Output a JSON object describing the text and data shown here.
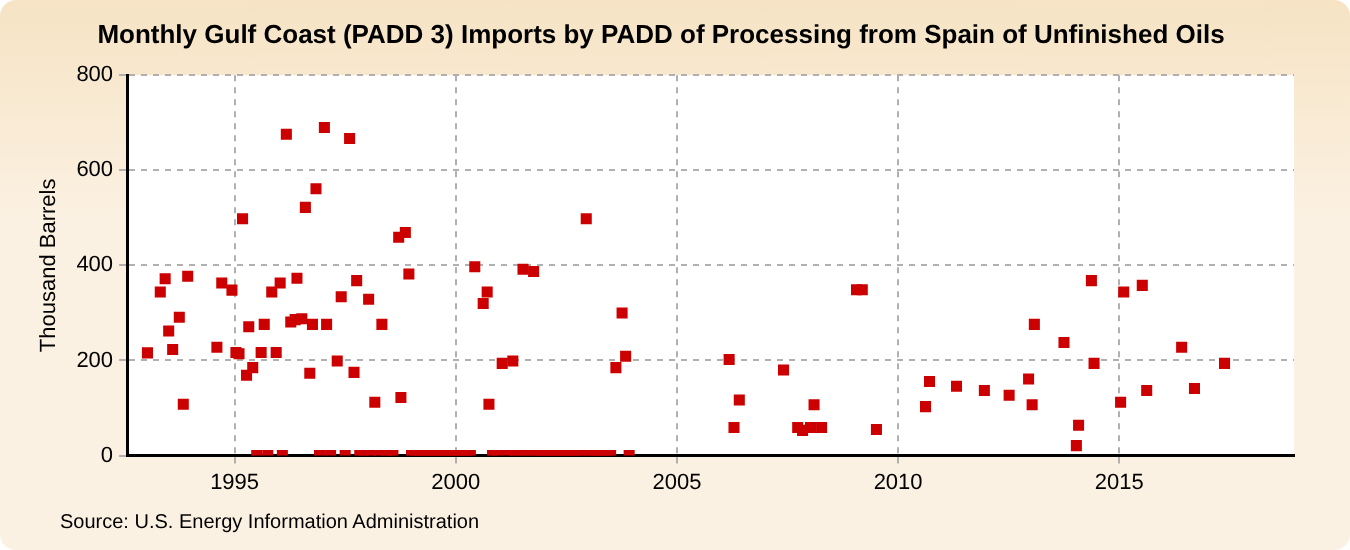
{
  "chart_data": {
    "type": "scatter",
    "title": "Monthly Gulf Coast (PADD 3) Imports by PADD of Processing from Spain of Unfinished Oils",
    "ylabel": "Thousand Barrels",
    "annotations": [
      "Source: U.S. Energy Information Administration"
    ],
    "xlim": [
      1992.57,
      2018.95
    ],
    "xticks": [
      1995,
      2000,
      2005,
      2010,
      2015
    ],
    "ylim": [
      0,
      800
    ],
    "yticks": [
      0,
      200,
      400,
      600,
      800
    ],
    "grid": true,
    "marker": "square",
    "series": [
      {
        "color": "#cc0000",
        "x": [
          1993.03,
          1993.32,
          1993.43,
          1993.51,
          1993.6,
          1993.75,
          1993.84,
          1993.94,
          1994.6,
          1994.71,
          1994.94,
          1995.03,
          1995.1,
          1995.18,
          1995.27,
          1995.32,
          1995.41,
          1995.6,
          1995.67,
          1995.84,
          1995.94,
          1996.03,
          1996.17,
          1996.27,
          1996.37,
          1996.41,
          1996.52,
          1996.6,
          1996.7,
          1996.76,
          1996.84,
          1997.03,
          1997.08,
          1997.32,
          1997.41,
          1997.6,
          1997.7,
          1997.76,
          1998.03,
          1998.17,
          1998.33,
          1998.71,
          1998.76,
          1998.86,
          1998.94,
          2000.43,
          2000.62,
          2000.71,
          2000.75,
          2001.05,
          2001.29,
          2001.52,
          2001.76,
          2002.95,
          2003.62,
          2003.76,
          2003.84,
          2006.18,
          2006.29,
          2006.41,
          2007.41,
          2007.73,
          2007.84,
          2008.02,
          2008.1,
          2008.27,
          2009.06,
          2009.19,
          2009.51,
          2010.62,
          2010.71,
          2011.32,
          2011.95,
          2012.51,
          2012.95,
          2013.03,
          2013.08,
          2013.75,
          2014.03,
          2014.08,
          2014.37,
          2014.43,
          2015.03,
          2015.1,
          2015.52,
          2015.62,
          2016.41,
          2016.7,
          2017.38,
          1995.5,
          1995.75,
          1996.08,
          1996.92,
          1997.17,
          1997.5,
          1997.83,
          1997.92,
          1998.08,
          1998.25,
          1998.42,
          1998.5,
          1998.58,
          1999.0,
          1999.08,
          1999.17,
          1999.25,
          1999.33,
          1999.42,
          1999.5,
          1999.58,
          1999.67,
          1999.75,
          1999.83,
          1999.92,
          2000.0,
          2000.08,
          2000.17,
          2000.25,
          2000.33,
          2000.83,
          2000.92,
          2001.17,
          2001.33,
          2001.42,
          2001.58,
          2001.67,
          2001.83,
          2001.92,
          2002.0,
          2002.08,
          2002.17,
          2002.25,
          2002.33,
          2002.42,
          2002.5,
          2002.58,
          2002.67,
          2002.75,
          2002.83,
          2003.0,
          2003.08,
          2003.17,
          2003.25,
          2003.33,
          2003.42,
          2003.5,
          2003.92
        ],
        "values": [
          216,
          344,
          372,
          262,
          223,
          291,
          108,
          377,
          228,
          363,
          348,
          217,
          214,
          498,
          169,
          271,
          185,
          217,
          276,
          344,
          217,
          363,
          676,
          281,
          286,
          373,
          288,
          522,
          173,
          276,
          561,
          690,
          276,
          199,
          334,
          667,
          175,
          368,
          329,
          112,
          276,
          459,
          122,
          469,
          382,
          397,
          320,
          344,
          108,
          194,
          199,
          392,
          387,
          498,
          185,
          300,
          209,
          202,
          59,
          117,
          180,
          59,
          53,
          59,
          107,
          59,
          349,
          349,
          55,
          103,
          156,
          146,
          137,
          127,
          161,
          107,
          276,
          238,
          21,
          64,
          368,
          194,
          112,
          344,
          358,
          137,
          228,
          141,
          194,
          0,
          0,
          0,
          0,
          0,
          0,
          0,
          0,
          0,
          0,
          0,
          0,
          0,
          0,
          0,
          0,
          0,
          0,
          0,
          0,
          0,
          0,
          0,
          0,
          0,
          0,
          0,
          0,
          0,
          0,
          0,
          0,
          0,
          0,
          0,
          0,
          0,
          0,
          0,
          0,
          0,
          0,
          0,
          0,
          0,
          0,
          0,
          0,
          0,
          0,
          0,
          0,
          0,
          0,
          0,
          0,
          0,
          0
        ]
      }
    ]
  }
}
